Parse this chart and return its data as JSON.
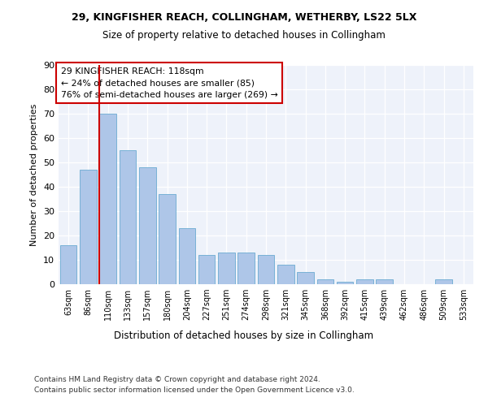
{
  "title1": "29, KINGFISHER REACH, COLLINGHAM, WETHERBY, LS22 5LX",
  "title2": "Size of property relative to detached houses in Collingham",
  "xlabel": "Distribution of detached houses by size in Collingham",
  "ylabel": "Number of detached properties",
  "categories": [
    "63sqm",
    "86sqm",
    "110sqm",
    "133sqm",
    "157sqm",
    "180sqm",
    "204sqm",
    "227sqm",
    "251sqm",
    "274sqm",
    "298sqm",
    "321sqm",
    "345sqm",
    "368sqm",
    "392sqm",
    "415sqm",
    "439sqm",
    "462sqm",
    "486sqm",
    "509sqm",
    "533sqm"
  ],
  "values": [
    16,
    47,
    70,
    55,
    48,
    37,
    23,
    12,
    13,
    13,
    12,
    8,
    5,
    2,
    1,
    2,
    2,
    0,
    0,
    2,
    0
  ],
  "bar_color": "#aec6e8",
  "bar_edge_color": "#6aabd2",
  "annotation_box": {
    "text_line1": "29 KINGFISHER REACH: 118sqm",
    "text_line2": "← 24% of detached houses are smaller (85)",
    "text_line3": "76% of semi-detached houses are larger (269) →"
  },
  "vline_color": "#cc0000",
  "ylim": [
    0,
    90
  ],
  "yticks": [
    0,
    10,
    20,
    30,
    40,
    50,
    60,
    70,
    80,
    90
  ],
  "bg_color": "#eef2fa",
  "footer1": "Contains HM Land Registry data © Crown copyright and database right 2024.",
  "footer2": "Contains public sector information licensed under the Open Government Licence v3.0."
}
